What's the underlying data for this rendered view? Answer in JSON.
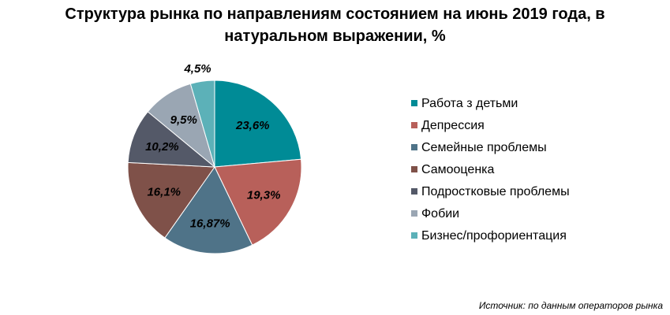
{
  "title_line1": "Структура рынка по направлениям состоянием на июнь 2019 года, в",
  "title_line2": "натуральном выражении, %",
  "source": "Источник: по данным операторов рынка",
  "chart_data": {
    "type": "pie",
    "title": "Структура рынка по направлениям состоянием на июнь 2019 года, в натуральном выражении, %",
    "legend_position": "right",
    "slices": [
      {
        "name": "Работа з детьми",
        "value": 23.6,
        "label": "23,6%",
        "color": "#008b96"
      },
      {
        "name": "Депрессия",
        "value": 19.3,
        "label": "19,3%",
        "color": "#b8605a"
      },
      {
        "name": "Семейные проблемы",
        "value": 16.87,
        "label": "16,87%",
        "color": "#4f7388"
      },
      {
        "name": "Самооценка",
        "value": 16.1,
        "label": "16,1%",
        "color": "#7f5149"
      },
      {
        "name": "Подростковые проблемы",
        "value": 10.2,
        "label": "10,2%",
        "color": "#545968"
      },
      {
        "name": "Фобии",
        "value": 9.5,
        "label": "9,5%",
        "color": "#9aa6b3"
      },
      {
        "name": "Бизнес/профориентация",
        "value": 4.5,
        "label": "4,5%",
        "color": "#5cb1b8"
      }
    ]
  }
}
